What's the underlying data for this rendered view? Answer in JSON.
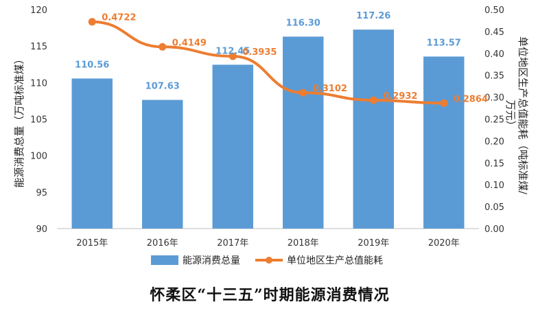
{
  "chart_data": {
    "type": "bar+line",
    "title": "怀柔区“十三五”时期能源消费情况",
    "categories": [
      "2015年",
      "2016年",
      "2017年",
      "2018年",
      "2019年",
      "2020年"
    ],
    "series": [
      {
        "name": "能源消费总量",
        "type": "bar",
        "axis": "left",
        "color": "#5b9bd5",
        "values": [
          110.56,
          107.63,
          112.45,
          116.3,
          117.26,
          113.57
        ],
        "labels": [
          "110.56",
          "107.63",
          "112.45",
          "116.30",
          "117.26",
          "113.57"
        ]
      },
      {
        "name": "单位地区生产总值能耗",
        "type": "line",
        "axis": "right",
        "color": "#ed7d31",
        "values": [
          0.4722,
          0.4149,
          0.3935,
          0.3102,
          0.2932,
          0.2864
        ],
        "labels": [
          "0.4722",
          "0.4149",
          "0.3935",
          "0.3102",
          "0.2932",
          "0.2864"
        ]
      }
    ],
    "ylabel_left": "能源消费总量（万吨标准煤）",
    "ylabel_right_lines": [
      "单位地区生产总值能耗（吨标准煤/",
      "万元）"
    ],
    "ylim_left": [
      90,
      120
    ],
    "yticks_left": [
      "90",
      "95",
      "100",
      "105",
      "110",
      "115",
      "120"
    ],
    "ylim_right": [
      0,
      0.5
    ],
    "yticks_right": [
      "0.00",
      "0.05",
      "0.10",
      "0.15",
      "0.20",
      "0.25",
      "0.30",
      "0.35",
      "0.40",
      "0.45",
      "0.50"
    ],
    "grid": false,
    "legend_position": "bottom"
  }
}
